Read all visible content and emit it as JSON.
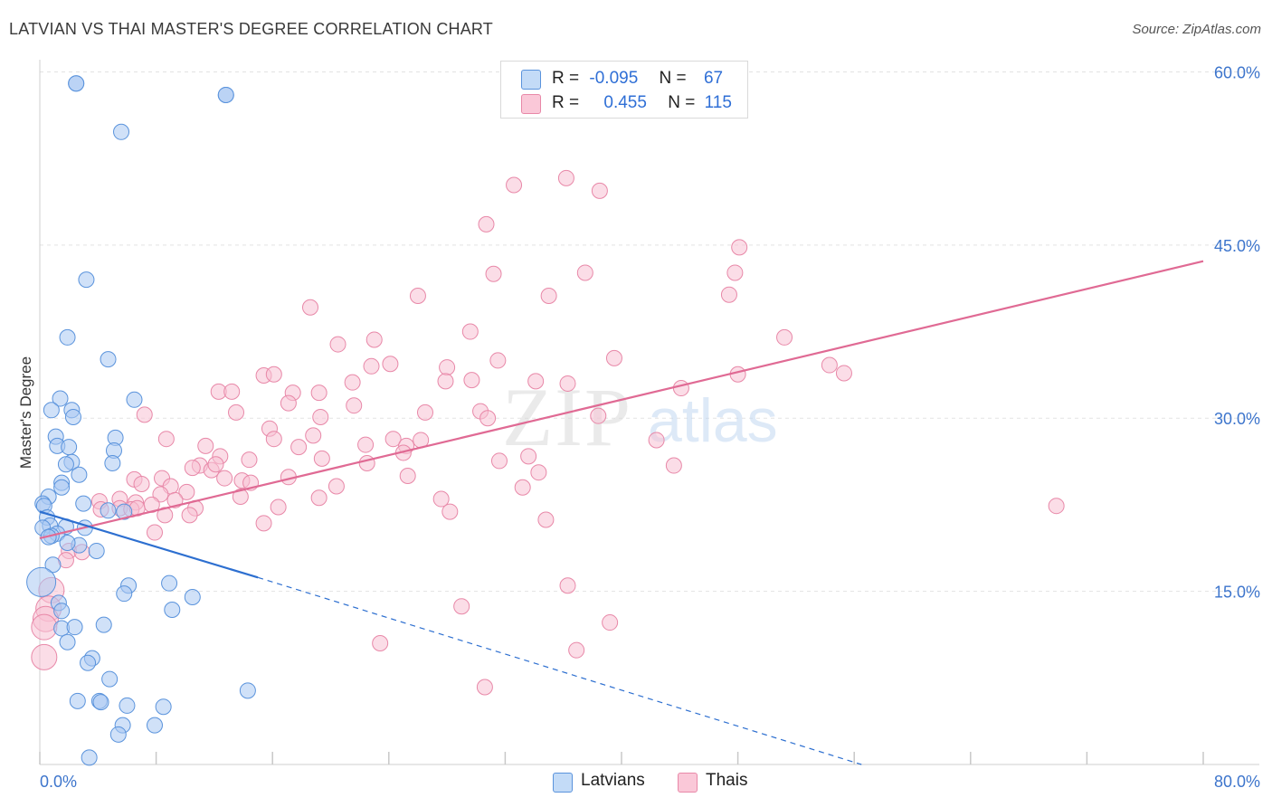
{
  "header": {
    "title": "LATVIAN VS THAI MASTER'S DEGREE CORRELATION CHART",
    "source": "Source: ZipAtlas.com"
  },
  "legend": {
    "rows": [
      {
        "r_label": "R =",
        "r_value": "-0.095",
        "n_label": "N =",
        "n_value": "67",
        "color": "#a9c9f2"
      },
      {
        "r_label": "R =",
        "r_value": "0.455",
        "n_label": "N =",
        "n_value": "115",
        "color": "#f7b6cc"
      }
    ]
  },
  "bottom_legend": {
    "latvians": "Latvians",
    "thais": "Thais"
  },
  "watermark": {
    "zip": "ZIP",
    "atlas": "atlas"
  },
  "colors": {
    "blue_fill": "#a9c9f2",
    "blue_stroke": "#5a93dc",
    "blue_line": "#2d6fd0",
    "pink_fill": "#f7c1d3",
    "pink_stroke": "#e888a8",
    "pink_line": "#e06a94",
    "tick_text": "#3d75cc"
  },
  "chart_data": {
    "type": "scatter",
    "title": "LATVIAN VS THAI MASTER'S DEGREE CORRELATION CHART",
    "xlabel": "",
    "ylabel": "Master's Degree",
    "xlim": [
      0,
      80
    ],
    "ylim": [
      0,
      60
    ],
    "x_ticks": [
      "0.0%",
      "80.0%"
    ],
    "y_ticks": [
      "15.0%",
      "30.0%",
      "45.0%",
      "60.0%"
    ],
    "grid": true,
    "series": [
      {
        "name": "Latvians",
        "r": -0.095,
        "n": 67,
        "trend": {
          "x0": 0,
          "y0": 21.9,
          "x1": 15,
          "y1": 16.2,
          "dash_x1": 56.5,
          "dash_y1": 0
        },
        "points": [
          [
            2.5,
            59.0
          ],
          [
            12.8,
            58.0
          ],
          [
            5.6,
            54.8
          ],
          [
            3.2,
            42.0
          ],
          [
            1.9,
            37.0
          ],
          [
            4.7,
            35.1
          ],
          [
            1.4,
            31.7
          ],
          [
            6.5,
            31.6
          ],
          [
            2.2,
            30.7
          ],
          [
            2.3,
            30.1
          ],
          [
            0.8,
            30.7
          ],
          [
            1.1,
            28.4
          ],
          [
            5.2,
            28.3
          ],
          [
            1.2,
            27.6
          ],
          [
            2.0,
            27.5
          ],
          [
            5.1,
            27.2
          ],
          [
            2.2,
            26.2
          ],
          [
            1.8,
            26.0
          ],
          [
            5.0,
            26.1
          ],
          [
            2.7,
            25.1
          ],
          [
            1.5,
            24.4
          ],
          [
            1.5,
            24.0
          ],
          [
            0.6,
            23.2
          ],
          [
            0.2,
            22.6
          ],
          [
            0.3,
            22.4
          ],
          [
            3.0,
            22.6
          ],
          [
            4.7,
            22.0
          ],
          [
            5.8,
            21.9
          ],
          [
            0.5,
            21.4
          ],
          [
            0.7,
            20.7
          ],
          [
            0.2,
            20.5
          ],
          [
            1.8,
            20.6
          ],
          [
            3.1,
            20.5
          ],
          [
            1.2,
            20.0
          ],
          [
            0.8,
            19.8
          ],
          [
            0.6,
            19.7
          ],
          [
            2.7,
            19.0
          ],
          [
            1.9,
            19.2
          ],
          [
            3.9,
            18.5
          ],
          [
            0.9,
            17.3
          ],
          [
            0.1,
            15.8
          ],
          [
            6.1,
            15.5
          ],
          [
            8.9,
            15.7
          ],
          [
            5.8,
            14.8
          ],
          [
            10.5,
            14.5
          ],
          [
            1.3,
            14.0
          ],
          [
            1.5,
            13.3
          ],
          [
            9.1,
            13.4
          ],
          [
            4.4,
            12.1
          ],
          [
            1.5,
            11.8
          ],
          [
            2.4,
            11.9
          ],
          [
            1.9,
            10.6
          ],
          [
            3.6,
            9.2
          ],
          [
            3.3,
            8.8
          ],
          [
            4.8,
            7.4
          ],
          [
            14.3,
            6.4
          ],
          [
            2.6,
            5.5
          ],
          [
            4.1,
            5.5
          ],
          [
            4.2,
            5.4
          ],
          [
            6.0,
            5.1
          ],
          [
            8.5,
            5.0
          ],
          [
            5.7,
            3.4
          ],
          [
            7.9,
            3.4
          ],
          [
            5.4,
            2.6
          ],
          [
            3.4,
            0.6
          ],
          [
            2.5,
            59.0
          ],
          [
            12.8,
            58.0
          ]
        ]
      },
      {
        "name": "Thais",
        "r": 0.455,
        "n": 115,
        "trend": {
          "x0": 0,
          "y0": 19.6,
          "x1": 80,
          "y1": 43.6
        },
        "points": [
          [
            36.2,
            50.8
          ],
          [
            32.6,
            50.2
          ],
          [
            38.5,
            49.7
          ],
          [
            30.7,
            46.8
          ],
          [
            48.1,
            44.8
          ],
          [
            37.5,
            42.6
          ],
          [
            31.2,
            42.5
          ],
          [
            47.8,
            42.6
          ],
          [
            26.0,
            40.6
          ],
          [
            35.0,
            40.6
          ],
          [
            47.4,
            40.7
          ],
          [
            18.6,
            39.6
          ],
          [
            29.6,
            37.5
          ],
          [
            51.2,
            37.0
          ],
          [
            23.0,
            36.8
          ],
          [
            20.5,
            36.4
          ],
          [
            31.5,
            35.0
          ],
          [
            39.5,
            35.2
          ],
          [
            22.8,
            34.5
          ],
          [
            28.0,
            34.4
          ],
          [
            24.1,
            34.7
          ],
          [
            54.3,
            34.6
          ],
          [
            55.3,
            33.9
          ],
          [
            15.4,
            33.7
          ],
          [
            16.1,
            33.8
          ],
          [
            27.9,
            33.2
          ],
          [
            21.5,
            33.1
          ],
          [
            29.7,
            33.3
          ],
          [
            34.1,
            33.2
          ],
          [
            36.3,
            33.0
          ],
          [
            48.0,
            33.8
          ],
          [
            19.2,
            32.2
          ],
          [
            12.3,
            32.3
          ],
          [
            44.1,
            32.6
          ],
          [
            13.2,
            32.3
          ],
          [
            17.4,
            32.2
          ],
          [
            21.6,
            31.1
          ],
          [
            30.3,
            30.6
          ],
          [
            26.5,
            30.5
          ],
          [
            30.8,
            30.0
          ],
          [
            13.5,
            30.5
          ],
          [
            17.1,
            31.3
          ],
          [
            19.3,
            30.1
          ],
          [
            7.2,
            30.3
          ],
          [
            38.4,
            30.2
          ],
          [
            15.8,
            29.1
          ],
          [
            18.8,
            28.5
          ],
          [
            8.7,
            28.2
          ],
          [
            16.1,
            28.2
          ],
          [
            24.3,
            28.2
          ],
          [
            42.4,
            28.1
          ],
          [
            26.2,
            28.1
          ],
          [
            22.4,
            27.7
          ],
          [
            17.8,
            27.5
          ],
          [
            11.4,
            27.6
          ],
          [
            25.2,
            27.6
          ],
          [
            12.4,
            26.7
          ],
          [
            14.4,
            26.4
          ],
          [
            25.0,
            27.0
          ],
          [
            33.6,
            26.7
          ],
          [
            19.4,
            26.5
          ],
          [
            22.5,
            26.1
          ],
          [
            31.6,
            26.3
          ],
          [
            11.0,
            25.9
          ],
          [
            11.8,
            25.5
          ],
          [
            43.6,
            25.9
          ],
          [
            10.5,
            25.7
          ],
          [
            12.1,
            26.0
          ],
          [
            34.3,
            25.3
          ],
          [
            6.5,
            24.7
          ],
          [
            8.4,
            24.8
          ],
          [
            12.7,
            24.8
          ],
          [
            17.1,
            24.9
          ],
          [
            25.3,
            25.0
          ],
          [
            13.9,
            24.6
          ],
          [
            14.5,
            24.4
          ],
          [
            20.4,
            24.1
          ],
          [
            33.2,
            24.0
          ],
          [
            9.0,
            24.1
          ],
          [
            10.1,
            23.6
          ],
          [
            7.0,
            24.3
          ],
          [
            8.3,
            23.4
          ],
          [
            13.8,
            23.2
          ],
          [
            19.2,
            23.1
          ],
          [
            5.5,
            23.0
          ],
          [
            6.6,
            22.7
          ],
          [
            9.3,
            22.9
          ],
          [
            27.6,
            23.0
          ],
          [
            4.1,
            22.8
          ],
          [
            4.2,
            22.1
          ],
          [
            5.5,
            22.2
          ],
          [
            6.3,
            22.1
          ],
          [
            6.7,
            22.2
          ],
          [
            7.7,
            22.5
          ],
          [
            10.7,
            22.2
          ],
          [
            10.3,
            21.6
          ],
          [
            28.2,
            21.9
          ],
          [
            16.4,
            22.3
          ],
          [
            8.6,
            21.6
          ],
          [
            69.9,
            22.4
          ],
          [
            34.8,
            21.2
          ],
          [
            15.4,
            20.9
          ],
          [
            7.9,
            20.1
          ],
          [
            2.0,
            18.5
          ],
          [
            2.9,
            18.4
          ],
          [
            1.8,
            17.7
          ],
          [
            0.8,
            15.1
          ],
          [
            36.3,
            15.5
          ],
          [
            0.6,
            13.5
          ],
          [
            0.4,
            12.6
          ],
          [
            0.3,
            11.9
          ],
          [
            29.0,
            13.7
          ],
          [
            39.2,
            12.3
          ],
          [
            23.4,
            10.5
          ],
          [
            36.9,
            9.9
          ],
          [
            0.3,
            9.3
          ],
          [
            30.6,
            6.7
          ]
        ]
      }
    ]
  }
}
